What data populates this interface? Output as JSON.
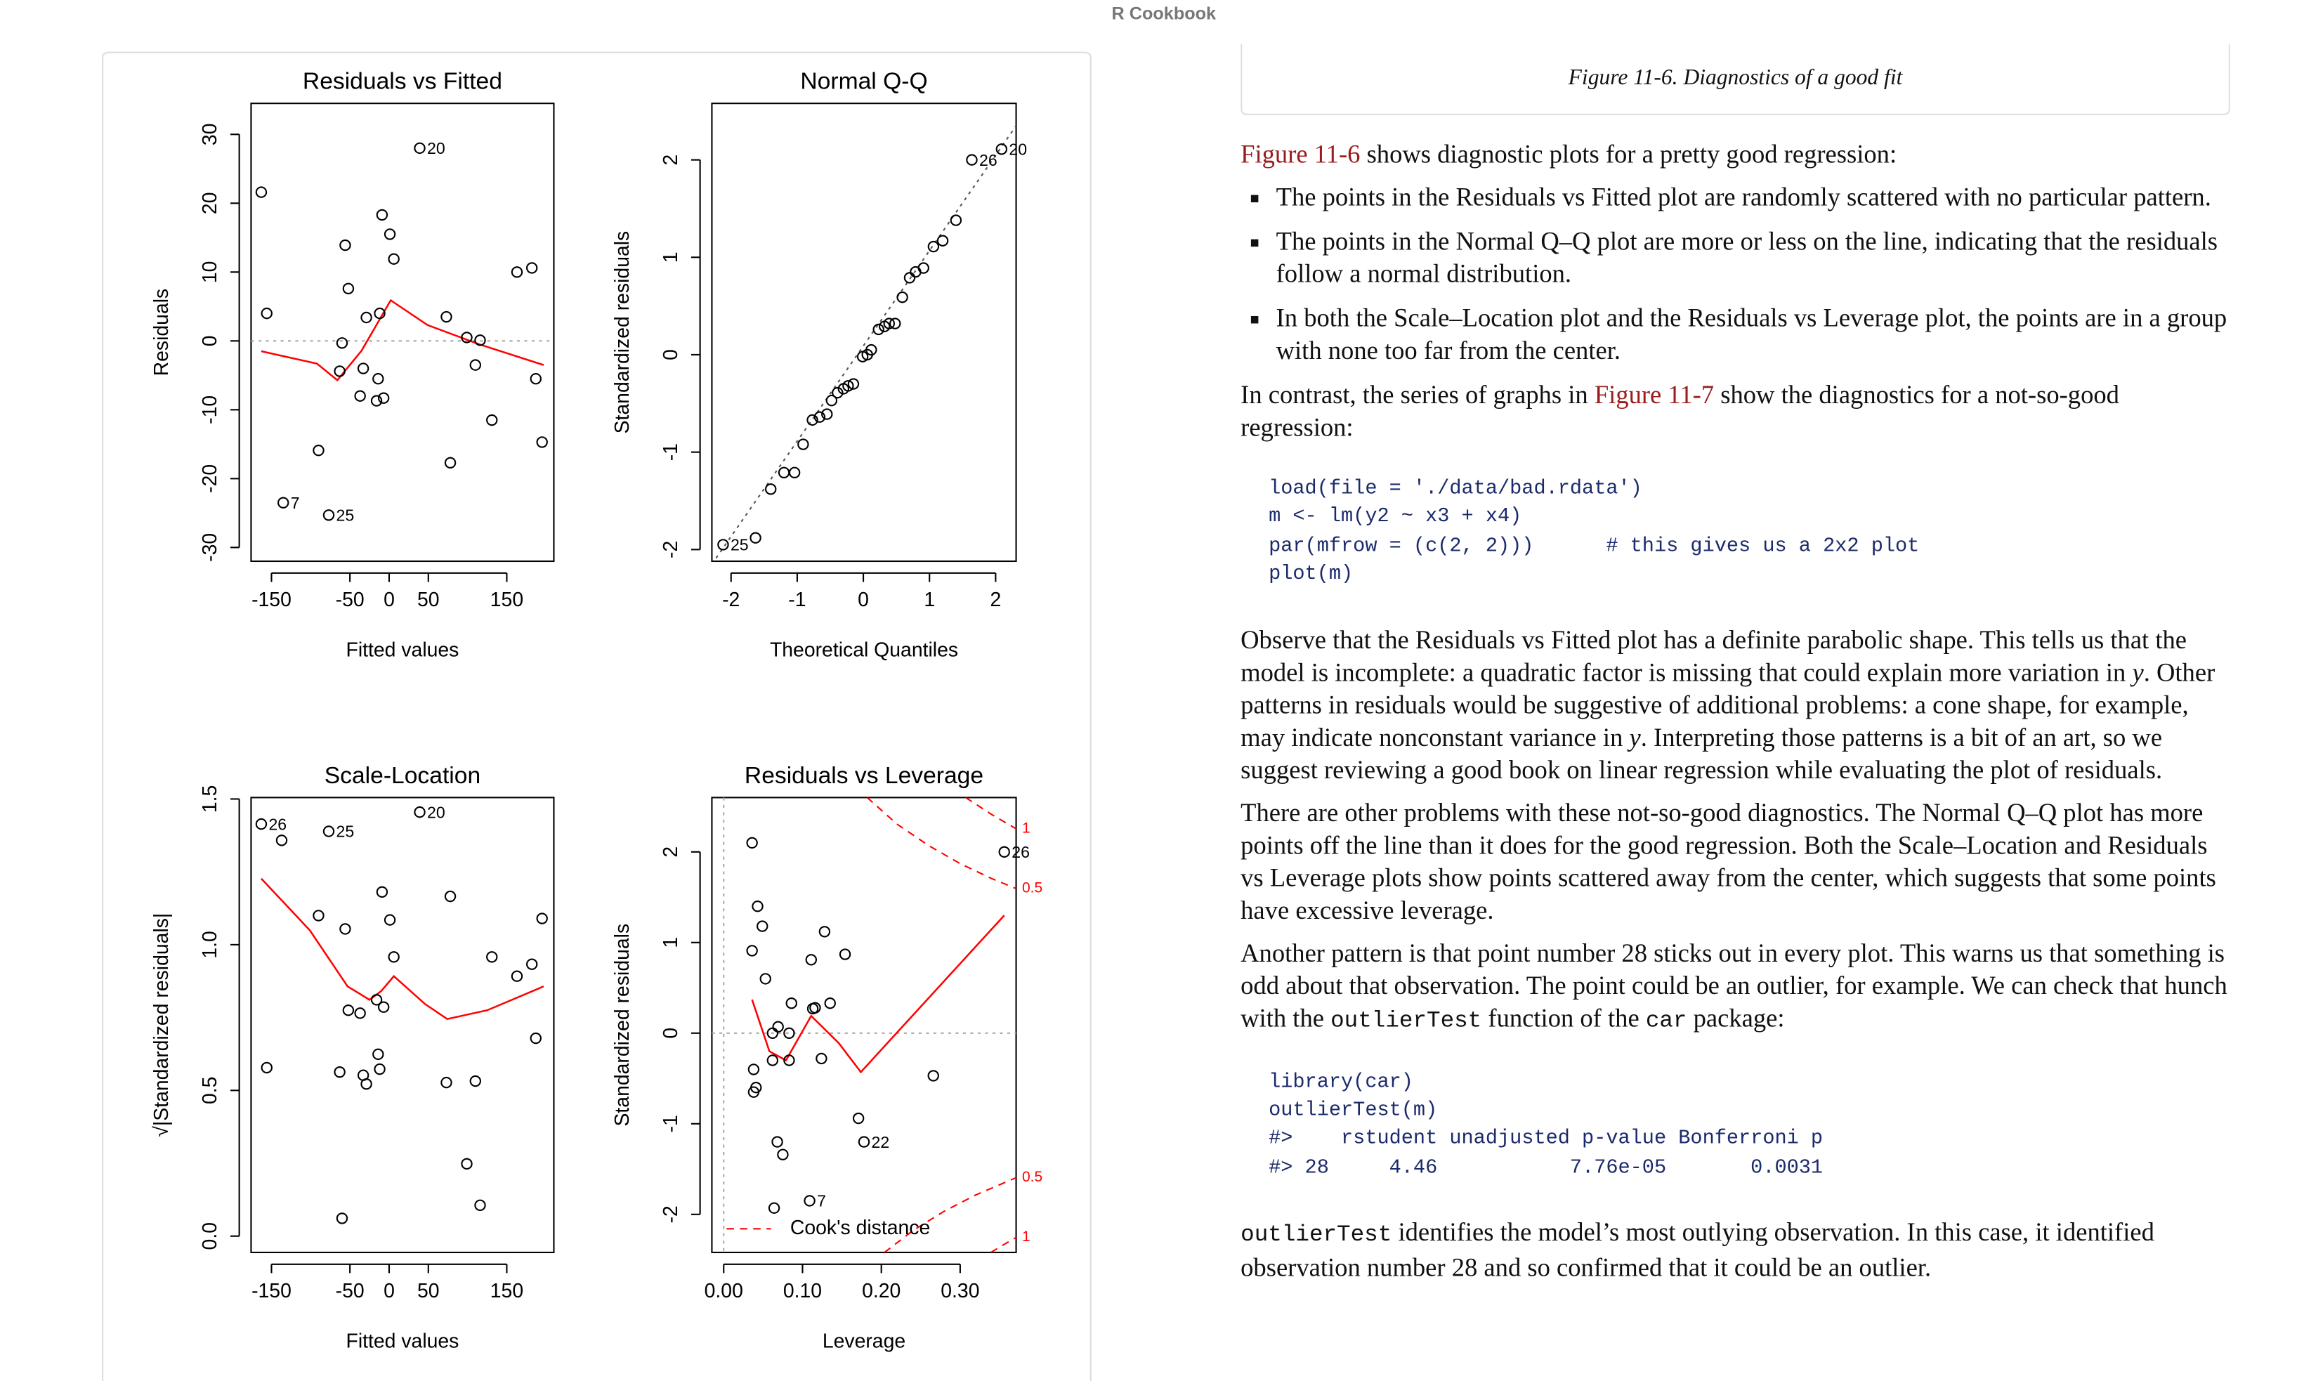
{
  "header": {
    "title": "R Cookbook"
  },
  "figure": {
    "caption": "Figure 11-6. Diagnostics of a good fit"
  },
  "chart_data": [
    {
      "type": "scatter",
      "title": "Residuals vs Fitted",
      "xlabel": "Fitted values",
      "ylabel": "Residuals",
      "xlim": [
        -176,
        210
      ],
      "ylim": [
        -32,
        34.5
      ],
      "xticks": [
        -150,
        -50,
        0,
        50,
        150
      ],
      "yticks": [
        -30,
        -20,
        -10,
        0,
        10,
        20,
        30
      ],
      "hline": 0,
      "points": {
        "x": [
          -163,
          -156,
          -135,
          -90,
          -77,
          -63,
          -60,
          -56,
          -52,
          -37,
          -33,
          -29,
          -16,
          -14,
          -12,
          -9,
          -7,
          1,
          6,
          39,
          73,
          78,
          99,
          110,
          116,
          131,
          163,
          182,
          187,
          195
        ],
        "values": [
          21.6,
          4,
          -23.5,
          -15.9,
          -25.3,
          -4.4,
          -0.3,
          13.9,
          7.6,
          -8,
          -4,
          3.4,
          -8.7,
          -5.5,
          4,
          18.3,
          -8.3,
          15.5,
          11.9,
          28,
          3.5,
          -17.7,
          0.5,
          -3.5,
          0.1,
          -11.5,
          10,
          10.6,
          -5.5,
          -14.7
        ],
        "labels": [
          null,
          null,
          "7",
          null,
          "25",
          null,
          null,
          null,
          null,
          null,
          null,
          null,
          null,
          null,
          null,
          null,
          null,
          null,
          null,
          "20",
          null,
          null,
          null,
          null,
          null,
          null,
          null,
          null,
          null,
          null
        ]
      },
      "smooth": {
        "color": "#ff0000",
        "x": [
          -163,
          -92,
          -66,
          -35,
          2,
          49,
          115,
          197
        ],
        "values": [
          -1.5,
          -3.3,
          -5.7,
          -1.4,
          5.9,
          2.3,
          -0.5,
          -3.5
        ]
      }
    },
    {
      "type": "scatter",
      "title": "Normal Q-Q",
      "xlabel": "Theoretical Quantiles",
      "ylabel": "Standardized residuals",
      "xlim": [
        -2.29,
        2.31
      ],
      "ylim": [
        -2.12,
        2.58
      ],
      "xticks": [
        -2,
        -1,
        0,
        1,
        2
      ],
      "yticks": [
        -2,
        -1,
        0,
        1,
        2
      ],
      "ref_line": {
        "x": [
          -2.29,
          2.31
        ],
        "values": [
          -2.15,
          2.35
        ]
      },
      "points": {
        "x": [
          -2.12,
          -1.63,
          -1.4,
          -1.2,
          -1.04,
          -0.91,
          -0.77,
          -0.66,
          -0.55,
          -0.48,
          -0.39,
          -0.3,
          -0.23,
          -0.15,
          -0.01,
          0.06,
          0.12,
          0.23,
          0.32,
          0.39,
          0.48,
          0.59,
          0.7,
          0.79,
          0.91,
          1.06,
          1.2,
          1.4,
          1.64,
          2.09
        ],
        "values": [
          -1.95,
          -1.88,
          -1.38,
          -1.21,
          -1.21,
          -0.92,
          -0.67,
          -0.64,
          -0.61,
          -0.47,
          -0.39,
          -0.35,
          -0.32,
          -0.3,
          -0.02,
          0,
          0.05,
          0.26,
          0.29,
          0.32,
          0.32,
          0.59,
          0.79,
          0.85,
          0.89,
          1.11,
          1.17,
          1.38,
          2.0,
          2.11
        ],
        "labels": [
          "25",
          null,
          null,
          null,
          null,
          null,
          null,
          null,
          null,
          null,
          null,
          null,
          null,
          null,
          null,
          null,
          null,
          null,
          null,
          null,
          null,
          null,
          null,
          null,
          null,
          null,
          null,
          null,
          "26",
          "20"
        ]
      }
    },
    {
      "type": "scatter",
      "title": "Scale-Location",
      "xlabel": "Fitted values",
      "ylabel": "√|Standardized residuals|",
      "xlim": [
        -176,
        210
      ],
      "ylim": [
        -0.056,
        1.505
      ],
      "xticks": [
        -150,
        -50,
        0,
        50,
        150
      ],
      "yticks": [
        {
          "value": 0,
          "label": "0.0"
        },
        0.5,
        {
          "value": 1,
          "label": "1.0"
        },
        1.5
      ],
      "points": {
        "x": [
          -163,
          -156,
          -137,
          -90,
          -77,
          -63,
          -60,
          -56,
          -52,
          -37,
          -33,
          -29,
          -16,
          -14,
          -12,
          -9,
          -7,
          1,
          6,
          39,
          73,
          78,
          99,
          110,
          116,
          131,
          163,
          182,
          187,
          195
        ],
        "values": [
          1.414,
          0.578,
          1.358,
          1.1,
          1.389,
          0.563,
          0.061,
          1.054,
          0.775,
          0.765,
          0.552,
          0.522,
          0.811,
          0.624,
          0.573,
          1.181,
          0.786,
          1.085,
          0.958,
          1.455,
          0.527,
          1.166,
          0.248,
          0.532,
          0.106,
          0.958,
          0.892,
          0.933,
          0.679,
          1.09
        ],
        "labels": [
          "26",
          null,
          null,
          null,
          "25",
          null,
          null,
          null,
          null,
          null,
          null,
          null,
          null,
          null,
          null,
          null,
          null,
          null,
          null,
          "20",
          null,
          null,
          null,
          null,
          null,
          null,
          null,
          null,
          null,
          null
        ]
      },
      "smooth": {
        "color": "#ff0000",
        "x": [
          -163,
          -101,
          -53,
          -25,
          -10,
          6,
          46,
          74,
          125,
          197
        ],
        "values": [
          1.227,
          1.049,
          0.857,
          0.811,
          0.841,
          0.892,
          0.796,
          0.745,
          0.775,
          0.857
        ]
      }
    },
    {
      "type": "scatter",
      "title": "Residuals vs Leverage",
      "xlabel": "Leverage",
      "ylabel": "Standardized residuals",
      "xlim": [
        -0.015,
        0.371
      ],
      "ylim": [
        -2.42,
        2.6
      ],
      "xticks": [
        {
          "value": 0,
          "label": "0.00"
        },
        {
          "value": 0.1,
          "label": "0.10"
        },
        {
          "value": 0.2,
          "label": "0.20"
        },
        {
          "value": 0.3,
          "label": "0.30"
        }
      ],
      "yticks": [
        -2,
        -1,
        0,
        1,
        2
      ],
      "hline": 0,
      "vline": 0,
      "points": {
        "x": [
          0.036,
          0.043,
          0.049,
          0.036,
          0.053,
          0.038,
          0.041,
          0.038,
          0.062,
          0.069,
          0.062,
          0.083,
          0.083,
          0.086,
          0.068,
          0.075,
          0.064,
          0.109,
          0.111,
          0.113,
          0.116,
          0.128,
          0.124,
          0.135,
          0.154,
          0.171,
          0.178,
          0.266,
          0.356
        ],
        "values": [
          2.1,
          1.4,
          1.18,
          0.91,
          0.6,
          -0.4,
          -0.6,
          -0.65,
          0,
          0.07,
          -0.3,
          0,
          -0.3,
          0.33,
          -1.2,
          -1.34,
          -1.93,
          -1.85,
          0.81,
          0.27,
          0.28,
          1.12,
          -0.28,
          0.33,
          0.87,
          -0.94,
          -1.2,
          -0.47,
          2.0
        ],
        "labels": [
          null,
          null,
          null,
          null,
          null,
          null,
          null,
          null,
          null,
          null,
          null,
          null,
          null,
          null,
          null,
          null,
          null,
          "7",
          null,
          null,
          null,
          null,
          null,
          null,
          null,
          null,
          "22",
          null,
          "26"
        ]
      },
      "smooth": {
        "color": "#ff0000",
        "x": [
          0.036,
          0.058,
          0.079,
          0.111,
          0.146,
          0.174,
          0.356
        ],
        "values": [
          0.37,
          -0.2,
          -0.3,
          0.19,
          -0.11,
          -0.43,
          1.3
        ]
      },
      "cooks": [
        {
          "level": 1,
          "x": [
            0.307,
            0.34,
            0.371
          ],
          "values": [
            2.6,
            2.413,
            2.255
          ]
        },
        {
          "level": 0.5,
          "x": [
            0.182,
            0.22,
            0.26,
            0.3,
            0.34,
            0.371
          ],
          "values": [
            2.6,
            2.306,
            2.07,
            1.871,
            1.706,
            1.595
          ]
        },
        {
          "level": 0.5,
          "x": [
            0.204,
            0.24,
            0.28,
            0.32,
            0.371
          ],
          "values": [
            -2.42,
            -2.179,
            -1.964,
            -1.785,
            -1.595
          ]
        },
        {
          "level": 1,
          "x": [
            0.339,
            0.355,
            0.371
          ],
          "values": [
            -2.42,
            -2.335,
            -2.255
          ]
        }
      ],
      "legend": {
        "label": "Cook's distance",
        "corner": "bottomleft"
      }
    }
  ],
  "body": [
    {
      "p": [
        {
          "link": "Figure 11-6"
        },
        " shows diagnostic plots for a pretty good regression:"
      ]
    },
    {
      "ul": [
        "The points in the Residuals vs Fitted plot are randomly scattered with no particular pattern.",
        "The points in the Normal Q–Q plot are more or less on the line, indicating that the residuals follow a normal distribution.",
        "In both the Scale–Location plot and the Residuals vs Leverage plot, the points are in a group with none too far from the center."
      ]
    },
    {
      "p": [
        "In contrast, the series of graphs in ",
        {
          "link": "Figure 11-7"
        },
        " show the diagnostics for a not-so-good regression:"
      ]
    },
    {
      "code": [
        "load(file = './data/bad.rdata')",
        "m <- lm(y2 ~ x3 + x4)",
        "par(mfrow = (c(2, 2)))      # this gives us a 2x2 plot",
        "plot(m)"
      ]
    },
    {
      "p": [
        "Observe that the Residuals vs Fitted plot has a definite parabolic shape. This tells us that the model is incomplete: a quadratic factor is missing that could explain more variation in ",
        {
          "em": "y"
        },
        ". Other patterns in residuals would be suggestive of additional problems: a cone shape, for example, may indicate nonconstant variance in ",
        {
          "em": "y"
        },
        ". Interpreting those patterns is a bit of an art, so we suggest reviewing a good book on linear regression while evaluating the plot of residuals."
      ]
    },
    {
      "p": [
        "There are other problems with these not-so-good diagnostics. The Normal Q–Q plot has more points off the line than it does for the good regression. Both the Scale–Location and Residuals vs Leverage plots show points scattered away from the center, which suggests that some points have excessive leverage."
      ]
    },
    {
      "p": [
        "Another pattern is that point number 28 sticks out in every plot. This warns us that something is odd about that observation. The point could be an outlier, for example. We can check that hunch with the ",
        {
          "code": "outlierTest"
        },
        " function of the ",
        {
          "code": "car"
        },
        " package:"
      ]
    },
    {
      "code": [
        "library(car)",
        "outlierTest(m)",
        "#>    rstudent unadjusted p-value Bonferroni p",
        "#> 28     4.46           7.76e-05       0.0031"
      ]
    },
    {
      "p": [
        {
          "code": "outlierTest"
        },
        " identifies the model’s most outlying observation. In this case, it identified observation number 28 and so confirmed that it could be an outlier."
      ]
    }
  ]
}
